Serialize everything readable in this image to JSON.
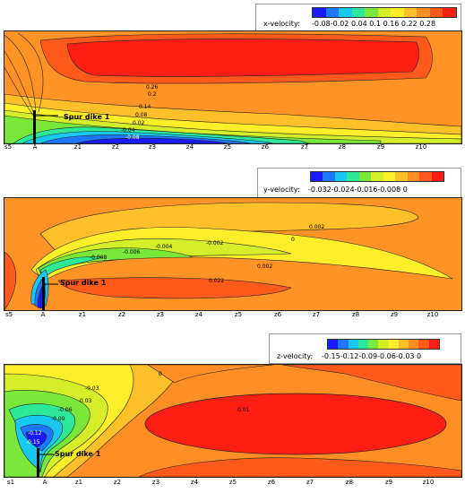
{
  "panels": [
    {
      "legend_title": "x-velocity:",
      "legend_ticks": "-0.08-0.02 0.04  0.1  0.16 0.22 0.28",
      "dike_label": "Spur dike 1",
      "axis_labels": [
        "s5",
        "A",
        "z1",
        "z2",
        "z3",
        "z4",
        "z5",
        "z6",
        "z7",
        "z8",
        "z9",
        "z10"
      ],
      "contour_labels": [
        "0.26",
        "0.2",
        "0.14",
        "0.08",
        "0.02",
        "-0.04",
        "-0.08"
      ]
    },
    {
      "legend_title": "y-velocity:",
      "legend_ticks": "-0.032-0.024-0.016-0.008    0",
      "dike_label": "Spur dike 1",
      "axis_labels": [
        "s5",
        "A",
        "z1",
        "z2",
        "z3",
        "z4",
        "z5",
        "z6",
        "z7",
        "z8",
        "z9",
        "z10"
      ],
      "contour_labels": [
        "0.002",
        "0",
        "-0.004",
        "-0.002",
        "-0.008",
        "-0.006",
        "0.002",
        "0.022"
      ]
    },
    {
      "legend_title": "z-velocity:",
      "legend_ticks": "-0.15-0.12-0.09-0.06-0.03   0",
      "dike_label": "Spur dike 1",
      "axis_labels": [
        "s1",
        "A",
        "z1",
        "z2",
        "z3",
        "z4",
        "z5",
        "z6",
        "z7",
        "z8",
        "z9",
        "z10"
      ],
      "contour_labels": [
        "0",
        "-0.03",
        "0.03",
        "-0.06",
        "-0.09",
        "-0.12",
        "-0.15",
        "0.01"
      ]
    }
  ],
  "colormap": [
    "#1a1aff",
    "#1e78ff",
    "#19c8f0",
    "#2ee89a",
    "#7ae83a",
    "#d4ee2a",
    "#ffee2a",
    "#ffc02a",
    "#ff8f24",
    "#ff5a1c",
    "#ff1e14"
  ]
}
